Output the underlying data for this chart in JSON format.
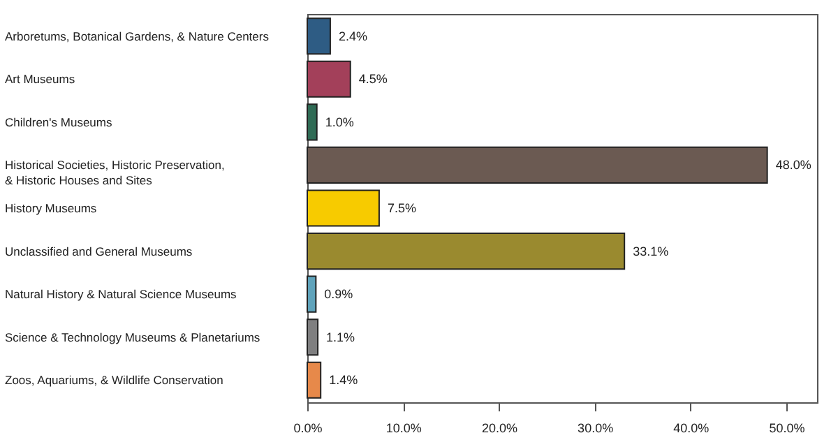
{
  "chart_data": {
    "type": "bar",
    "orientation": "horizontal",
    "categories": [
      "Arboretums, Botanical Gardens, & Nature Centers",
      "Art Museums",
      "Children's Museums",
      "Historical Societies, Historic Preservation, & Historic Houses and Sites",
      "History Museums",
      "Unclassified and General Museums",
      "Natural History & Natural Science Museums",
      "Science & Technology Museums & Planetariums",
      "Zoos, Aquariums, & Wildlife Conservation"
    ],
    "values": [
      2.4,
      4.5,
      1.0,
      48.0,
      7.5,
      33.1,
      0.9,
      1.1,
      1.4
    ],
    "value_labels": [
      "2.4%",
      "4.5%",
      "1.0%",
      "48.0%",
      "7.5%",
      "33.1%",
      "0.9%",
      "1.1%",
      "1.4%"
    ],
    "colors": [
      "#2e5c84",
      "#a3405a",
      "#2f6b55",
      "#6b5a52",
      "#f7cb00",
      "#9a8a2f",
      "#5fa3bb",
      "#7f7f80",
      "#e7894a"
    ],
    "xlim": [
      0,
      53.2
    ],
    "xticks": [
      {
        "value": 0,
        "label": "0.0%"
      },
      {
        "value": 10,
        "label": "10.0%"
      },
      {
        "value": 20,
        "label": "20.0%"
      },
      {
        "value": 30,
        "label": "30.0%"
      },
      {
        "value": 40,
        "label": "40.0%"
      },
      {
        "value": 50,
        "label": "50.0%"
      }
    ],
    "grid": false
  }
}
